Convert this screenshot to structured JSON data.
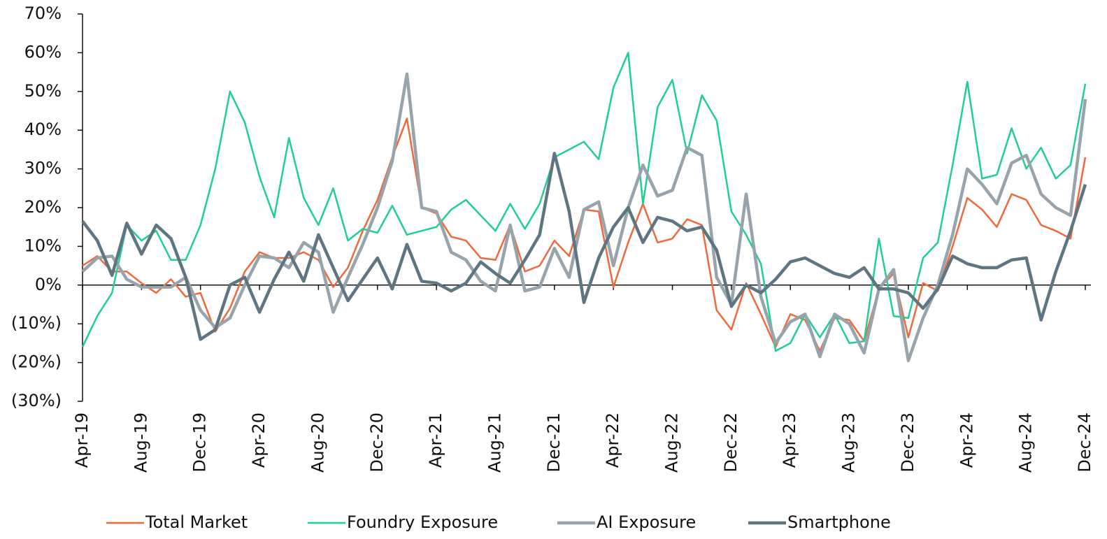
{
  "chart_data": {
    "type": "line",
    "categories": [
      "Apr-19",
      null,
      null,
      null,
      "Aug-19",
      null,
      null,
      null,
      "Dec-19",
      null,
      null,
      null,
      "Apr-20",
      null,
      null,
      null,
      "Aug-20",
      null,
      null,
      null,
      "Dec-20",
      null,
      null,
      null,
      "Apr-21",
      null,
      null,
      null,
      "Aug-21",
      null,
      null,
      null,
      "Dec-21",
      null,
      null,
      null,
      "Apr-22",
      null,
      null,
      null,
      "Aug-22",
      null,
      null,
      null,
      "Dec-22",
      null,
      null,
      null,
      "Apr-23",
      null,
      null,
      null,
      "Aug-23",
      null,
      null,
      null,
      "Dec-23",
      null,
      null,
      null,
      "Apr-24",
      null,
      null,
      null,
      "Aug-24",
      null,
      null,
      null,
      "Dec-24"
    ],
    "series": [
      {
        "name": "Total Market",
        "color": "#f0693c",
        "values": [
          5,
          7.5,
          3.5,
          3.5,
          0.5,
          -2,
          1.5,
          -3,
          -2,
          -12,
          -6,
          3.5,
          8.5,
          7,
          7,
          8.5,
          6.5,
          -0.5,
          4.5,
          14,
          22,
          33,
          43,
          20,
          18.5,
          12.5,
          11.5,
          7,
          6.5,
          15.5,
          3.5,
          5,
          11.5,
          7.5,
          19.5,
          19,
          -0.5,
          11,
          21,
          11,
          12,
          17,
          15.5,
          -6.5,
          -11.5,
          0.5,
          -7.5,
          -16,
          -7.5,
          -9,
          -17,
          -8.5,
          -9,
          -14.5,
          -1,
          3,
          -13.5,
          0.5,
          -1.5,
          10,
          22.5,
          19.5,
          15,
          23.5,
          22,
          15.5,
          14,
          12,
          33
        ]
      },
      {
        "name": "Foundry Exposure",
        "color": "#1fcf95",
        "values": [
          -16,
          -8,
          -2,
          15.5,
          11.5,
          14,
          6.5,
          6.5,
          15.5,
          30,
          50,
          42,
          28,
          17.5,
          38,
          22.5,
          15.5,
          25,
          11.5,
          14.5,
          13.5,
          20.5,
          13,
          14,
          15,
          19.5,
          22,
          18,
          14,
          21,
          14.5,
          21,
          33,
          35,
          37,
          32.5,
          51,
          60,
          21,
          46,
          53,
          34,
          49,
          42.5,
          19,
          13,
          5.5,
          -17,
          -15,
          -7.5,
          -13.5,
          -7.5,
          -15,
          -14.5,
          12,
          -8,
          -8.5,
          7,
          11,
          31,
          52.5,
          27.5,
          28.5,
          40.5,
          30,
          35.5,
          27.5,
          31,
          52
        ]
      },
      {
        "name": "AI Exposure",
        "color": "#98a4ab",
        "values": [
          3.5,
          7,
          7.5,
          1.5,
          -0.5,
          -0.5,
          -0.5,
          2,
          -6.5,
          -11,
          -8.5,
          0,
          7.5,
          7,
          4.5,
          11,
          8.5,
          -7,
          2,
          10.5,
          20,
          32,
          54.5,
          20,
          19,
          8.5,
          6.5,
          1,
          -1.5,
          15.5,
          -1.5,
          -0.5,
          9.5,
          2,
          19.5,
          21.5,
          5,
          20,
          31,
          23,
          24.5,
          35.5,
          33.5,
          2,
          -5,
          23.5,
          -3,
          -15,
          -9.5,
          -7.5,
          -18.5,
          -7.5,
          -10,
          -17.5,
          -1,
          4,
          -19.5,
          -8.5,
          0,
          13,
          30,
          26,
          21,
          31.5,
          33.5,
          23.5,
          20,
          18,
          48
        ]
      },
      {
        "name": "Smartphone",
        "color": "#5f7682",
        "values": [
          16.5,
          11.5,
          2.5,
          16,
          8,
          15.5,
          12,
          2,
          -14,
          -11.5,
          0,
          2,
          -7,
          1.5,
          8.5,
          1,
          13,
          4.5,
          -4,
          1.5,
          7,
          -1,
          10.5,
          1,
          0.5,
          -1.5,
          0.5,
          6,
          3,
          0.5,
          6.5,
          13,
          34,
          19,
          -4.5,
          7,
          15,
          20,
          11,
          17.5,
          16.5,
          14,
          15,
          9,
          -5.5,
          0,
          -2,
          1.5,
          6,
          7,
          5,
          3,
          2,
          4.5,
          -1,
          -1,
          -2,
          -6,
          -1,
          7.5,
          5.5,
          4.5,
          4.5,
          6.5,
          7,
          -9,
          3.5,
          14,
          26
        ]
      }
    ],
    "ylim": [
      -30,
      70
    ],
    "yticks": [
      {
        "value": 70,
        "label": "70%"
      },
      {
        "value": 60,
        "label": "60%"
      },
      {
        "value": 50,
        "label": "50%"
      },
      {
        "value": 40,
        "label": "40%"
      },
      {
        "value": 30,
        "label": "30%"
      },
      {
        "value": 20,
        "label": "20%"
      },
      {
        "value": 10,
        "label": "10%"
      },
      {
        "value": 0,
        "label": "0%"
      },
      {
        "value": -10,
        "label": "(10%)"
      },
      {
        "value": -20,
        "label": "(20%)"
      },
      {
        "value": -30,
        "label": "(30%)"
      }
    ],
    "legend": "bottom"
  }
}
